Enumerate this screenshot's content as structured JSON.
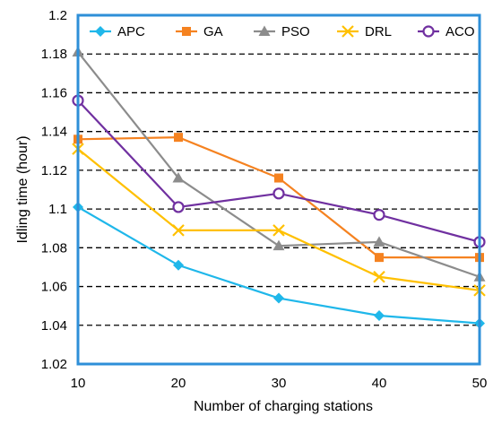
{
  "chart_data": {
    "type": "line",
    "xlabel": "Number of charging stations",
    "ylabel": "Idling time (hour)",
    "x": [
      10,
      20,
      30,
      40,
      50
    ],
    "xlim": [
      10,
      50
    ],
    "ylim": [
      1.02,
      1.2
    ],
    "yticks": [
      "1.02",
      "1.04",
      "1.06",
      "1.08",
      "1.1",
      "1.12",
      "1.14",
      "1.16",
      "1.18",
      "1.2"
    ],
    "xticks": [
      "10",
      "20",
      "30",
      "40",
      "50"
    ],
    "grid": "horizontal dashed",
    "legend_position": "top",
    "series": [
      {
        "name": "APC",
        "color": "#1fb7ea",
        "marker": "diamond",
        "values": [
          1.101,
          1.071,
          1.054,
          1.045,
          1.041
        ]
      },
      {
        "name": "GA",
        "color": "#f58220",
        "marker": "square",
        "values": [
          1.136,
          1.137,
          1.116,
          1.075,
          1.075
        ]
      },
      {
        "name": "PSO",
        "color": "#8c8c8c",
        "marker": "triangle",
        "values": [
          1.181,
          1.116,
          1.081,
          1.083,
          1.065
        ]
      },
      {
        "name": "DRL",
        "color": "#ffc000",
        "marker": "cross",
        "values": [
          1.131,
          1.089,
          1.089,
          1.065,
          1.058
        ]
      },
      {
        "name": "ACO",
        "color": "#7030a0",
        "marker": "circle",
        "values": [
          1.156,
          1.101,
          1.108,
          1.097,
          1.083
        ]
      }
    ]
  }
}
